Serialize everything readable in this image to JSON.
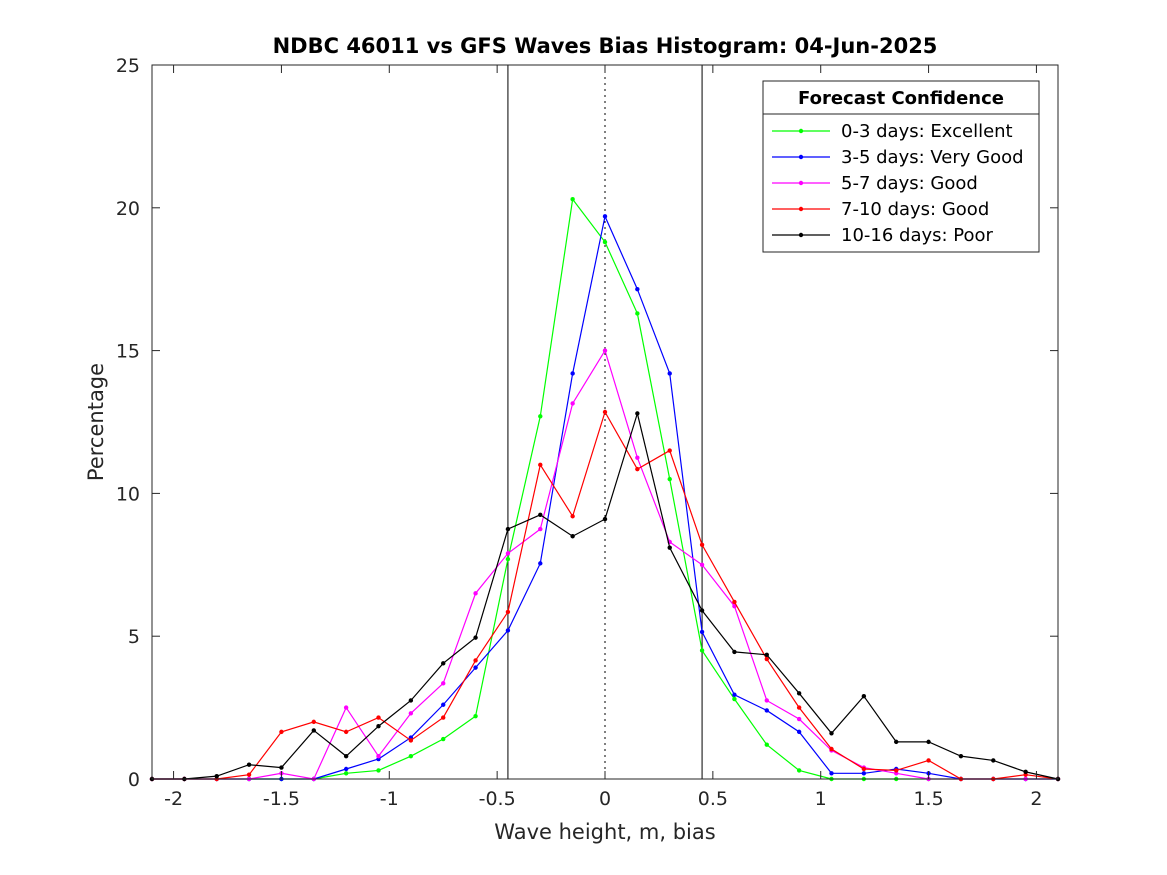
{
  "chart_data": {
    "type": "line",
    "title": "NDBC 46011 vs GFS Waves Bias Histogram: 04-Jun-2025",
    "xlabel": "Wave height, m, bias",
    "ylabel": "Percentage",
    "xlim": [
      -2.1,
      2.1
    ],
    "ylim": [
      0,
      25
    ],
    "xticks": [
      -2,
      -1.5,
      -1,
      -0.5,
      0,
      0.5,
      1,
      1.5,
      2
    ],
    "xtick_labels": [
      "-2",
      "-1.5",
      "-1",
      "-0.5",
      "0",
      "0.5",
      "1",
      "1.5",
      "2"
    ],
    "yticks": [
      0,
      5,
      10,
      15,
      20,
      25
    ],
    "ytick_labels": [
      "0",
      "5",
      "10",
      "15",
      "20",
      "25"
    ],
    "grid": false,
    "legend": {
      "title": "Forecast Confidence",
      "location": "top-right"
    },
    "reference_lines": [
      {
        "x": -0.45,
        "style": "solid"
      },
      {
        "x": 0,
        "style": "dotted"
      },
      {
        "x": 0.45,
        "style": "solid"
      }
    ],
    "x": [
      -2.1,
      -1.95,
      -1.8,
      -1.65,
      -1.5,
      -1.35,
      -1.2,
      -1.05,
      -0.9,
      -0.75,
      -0.6,
      -0.45,
      -0.3,
      -0.15,
      0,
      0.15,
      0.3,
      0.45,
      0.6,
      0.75,
      0.9,
      1.05,
      1.2,
      1.35,
      1.5,
      1.65,
      1.8,
      1.95,
      2.1
    ],
    "series": [
      {
        "name": "0-3 days: Excellent",
        "color": "#00ff00",
        "values": [
          0,
          0,
          0,
          0,
          0,
          0,
          0.2,
          0.3,
          0.8,
          1.4,
          2.2,
          7.7,
          12.7,
          20.3,
          18.8,
          16.3,
          10.5,
          4.5,
          2.8,
          1.2,
          0.3,
          0,
          0,
          0,
          0,
          0,
          0,
          0,
          0
        ]
      },
      {
        "name": "3-5 days: Very Good",
        "color": "#0000ff",
        "values": [
          0,
          0,
          0,
          0,
          0,
          0,
          0.35,
          0.7,
          1.45,
          2.6,
          3.9,
          5.2,
          7.55,
          14.2,
          19.7,
          17.15,
          14.2,
          5.15,
          2.95,
          2.4,
          1.65,
          0.2,
          0.2,
          0.35,
          0.2,
          0,
          0,
          0,
          0
        ]
      },
      {
        "name": "5-7 days: Good",
        "color": "#ff00ff",
        "values": [
          0,
          0,
          0,
          0,
          0.2,
          0,
          2.5,
          0.8,
          2.3,
          3.35,
          6.5,
          7.9,
          8.75,
          13.15,
          15.0,
          11.25,
          8.3,
          7.5,
          6.05,
          2.75,
          2.1,
          1.0,
          0.4,
          0.2,
          0,
          0,
          0,
          0,
          0
        ]
      },
      {
        "name": "7-10 days: Good",
        "color": "#ff0000",
        "values": [
          0,
          0,
          0,
          0.15,
          1.65,
          2.0,
          1.65,
          2.15,
          1.35,
          2.15,
          4.15,
          5.85,
          11.0,
          9.2,
          12.85,
          10.85,
          11.5,
          8.2,
          6.2,
          4.2,
          2.5,
          1.05,
          0.35,
          0.3,
          0.65,
          0,
          0,
          0.15,
          0
        ]
      },
      {
        "name": "10-16 days: Poor",
        "color": "#000000",
        "values": [
          0,
          0,
          0.1,
          0.5,
          0.4,
          1.7,
          0.8,
          1.85,
          2.75,
          4.05,
          4.95,
          8.75,
          9.25,
          8.5,
          9.1,
          12.8,
          8.1,
          5.9,
          4.45,
          4.35,
          3.0,
          1.6,
          2.9,
          1.3,
          1.3,
          0.8,
          0.65,
          0.25,
          0
        ]
      }
    ]
  }
}
